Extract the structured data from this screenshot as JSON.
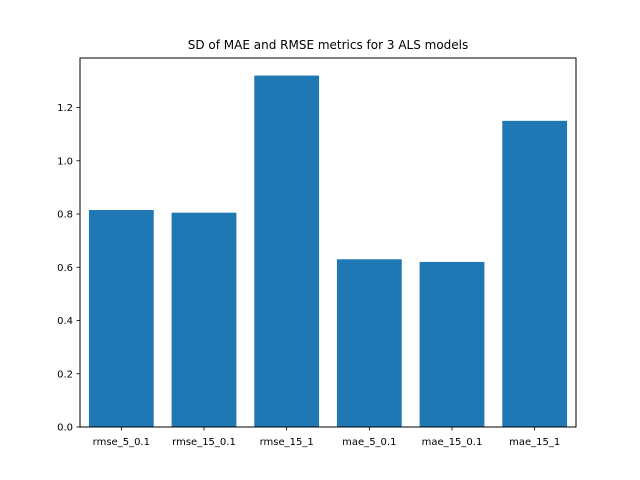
{
  "chart_data": {
    "type": "bar",
    "title": "SD of MAE and RMSE metrics for 3 ALS models",
    "xlabel": "",
    "ylabel": "",
    "categories": [
      "rmse_5_0.1",
      "rmse_15_0.1",
      "rmse_15_1",
      "mae_5_0.1",
      "mae_15_0.1",
      "mae_15_1"
    ],
    "values": [
      0.815,
      0.805,
      1.32,
      0.63,
      0.62,
      1.15
    ],
    "ylim": [
      0,
      1.386
    ],
    "yticks": [
      0.0,
      0.2,
      0.4,
      0.6,
      0.8,
      1.0,
      1.2
    ],
    "ytick_labels": [
      "0.0",
      "0.2",
      "0.4",
      "0.6",
      "0.8",
      "1.0",
      "1.2"
    ],
    "bar_color": "#1f77b4",
    "grid": false,
    "legend": "none"
  }
}
